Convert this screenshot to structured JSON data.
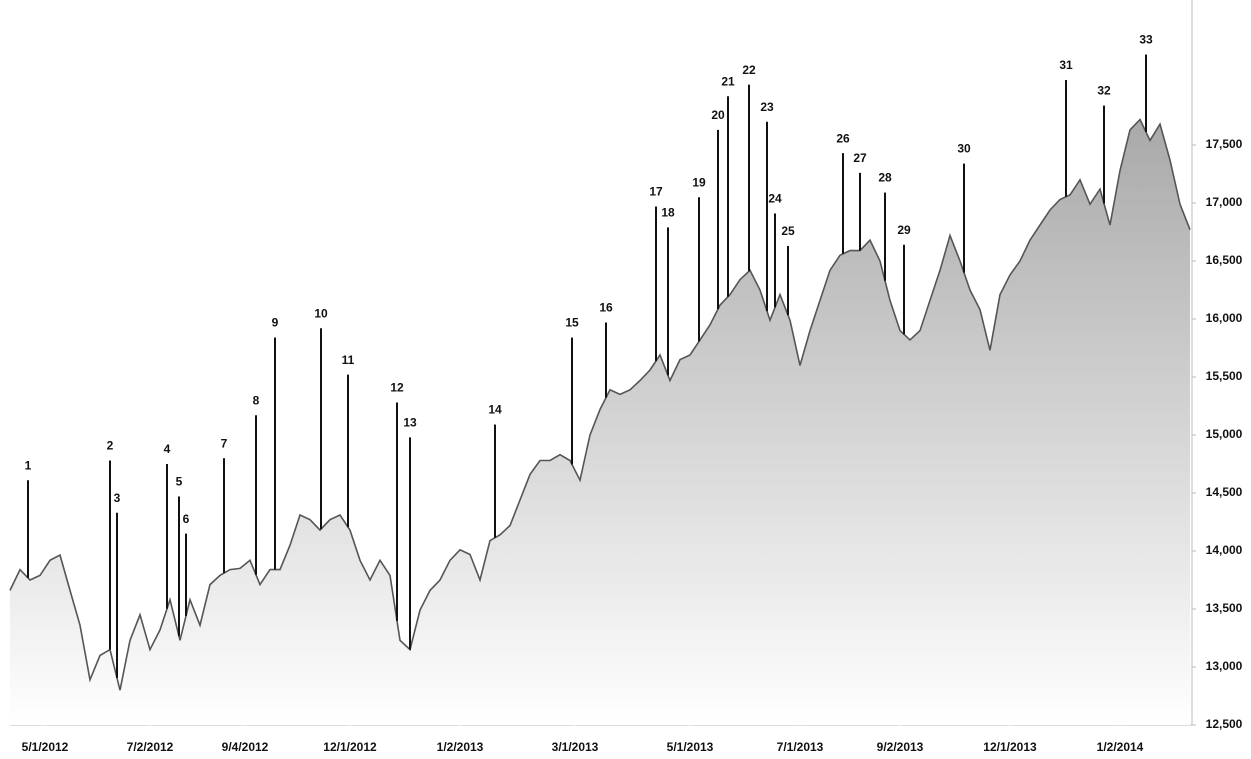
{
  "chart_data": {
    "type": "area",
    "values": [
      13660,
      13840,
      13750,
      13790,
      13920,
      13965,
      13660,
      13360,
      12890,
      13100,
      13150,
      12800,
      13230,
      13450,
      13150,
      13320,
      13580,
      13230,
      13580,
      13360,
      13710,
      13790,
      13840,
      13850,
      13920,
      13710,
      13840,
      13840,
      14050,
      14310,
      14270,
      14180,
      14270,
      14310,
      14180,
      13920,
      13750,
      13920,
      13790,
      13230,
      13150,
      13490,
      13660,
      13750,
      13920,
      14010,
      13970,
      13750,
      14090,
      14140,
      14220,
      14440,
      14660,
      14780,
      14780,
      14830,
      14780,
      14610,
      15000,
      15220,
      15390,
      15350,
      15390,
      15470,
      15560,
      15690,
      15470,
      15650,
      15690,
      15820,
      15950,
      16120,
      16210,
      16340,
      16420,
      16250,
      15990,
      16210,
      15990,
      15600,
      15900,
      16160,
      16420,
      16550,
      16590,
      16590,
      16680,
      16500,
      16160,
      15900,
      15820,
      15900,
      16160,
      16420,
      16720,
      16500,
      16250,
      16080,
      15730,
      16210,
      16380,
      16500,
      16680,
      16810,
      16940,
      17030,
      17070,
      17200,
      16990,
      17120,
      16810,
      17280,
      17630,
      17720,
      17540,
      17680,
      17370,
      16990,
      16770
    ],
    "color": "#555555",
    "xlim": [
      0,
      118
    ],
    "xticks": [
      {
        "value": 3.5,
        "label": "5/1/2012"
      },
      {
        "value": 14,
        "label": "7/2/2012"
      },
      {
        "value": 23.5,
        "label": "9/4/2012"
      },
      {
        "value": 34,
        "label": "12/1/2012"
      },
      {
        "value": 45,
        "label": "1/2/2013"
      },
      {
        "value": 56.5,
        "label": "3/1/2013"
      },
      {
        "value": 68,
        "label": "5/1/2013"
      },
      {
        "value": 79,
        "label": "7/1/2013"
      },
      {
        "value": 89,
        "label": "9/2/2013"
      },
      {
        "value": 100,
        "label": "12/1/2013"
      },
      {
        "value": 111,
        "label": "1/2/2014"
      }
    ],
    "ylim": [
      12500,
      18750
    ],
    "yticks": [
      {
        "value": 12500,
        "label": "12,500"
      },
      {
        "value": 13000,
        "label": "13,000"
      },
      {
        "value": 13500,
        "label": "13,500"
      },
      {
        "value": 14000,
        "label": "14,000"
      },
      {
        "value": 14500,
        "label": "14,500"
      },
      {
        "value": 15000,
        "label": "15,000"
      },
      {
        "value": 15500,
        "label": "15,500"
      },
      {
        "value": 16000,
        "label": "16,000"
      },
      {
        "value": 16500,
        "label": "16,500"
      },
      {
        "value": 17000,
        "label": "17,000"
      },
      {
        "value": 17500,
        "label": "17,500"
      }
    ],
    "annotations": [
      {
        "label": "1",
        "x": 1.8,
        "y": 14610
      },
      {
        "label": "2",
        "x": 10,
        "y": 14780
      },
      {
        "label": "3",
        "x": 10.7,
        "y": 14330
      },
      {
        "label": "4",
        "x": 15.7,
        "y": 14750
      },
      {
        "label": "5",
        "x": 16.9,
        "y": 14470
      },
      {
        "label": "6",
        "x": 17.6,
        "y": 14150
      },
      {
        "label": "7",
        "x": 21.4,
        "y": 14800
      },
      {
        "label": "8",
        "x": 24.6,
        "y": 15170
      },
      {
        "label": "9",
        "x": 26.5,
        "y": 15840
      },
      {
        "label": "10",
        "x": 31.1,
        "y": 15920
      },
      {
        "label": "11",
        "x": 33.8,
        "y": 15520
      },
      {
        "label": "12",
        "x": 38.7,
        "y": 15280
      },
      {
        "label": "13",
        "x": 40,
        "y": 14980
      },
      {
        "label": "14",
        "x": 48.5,
        "y": 15090
      },
      {
        "label": "15",
        "x": 56.2,
        "y": 15840
      },
      {
        "label": "16",
        "x": 59.6,
        "y": 15970
      },
      {
        "label": "17",
        "x": 64.6,
        "y": 16970
      },
      {
        "label": "18",
        "x": 65.8,
        "y": 16790
      },
      {
        "label": "19",
        "x": 68.9,
        "y": 17050
      },
      {
        "label": "20",
        "x": 70.8,
        "y": 17630
      },
      {
        "label": "21",
        "x": 71.8,
        "y": 17920
      },
      {
        "label": "22",
        "x": 73.9,
        "y": 18020
      },
      {
        "label": "23",
        "x": 75.7,
        "y": 17700
      },
      {
        "label": "24",
        "x": 76.5,
        "y": 16910
      },
      {
        "label": "25",
        "x": 77.8,
        "y": 16630
      },
      {
        "label": "26",
        "x": 83.3,
        "y": 17430
      },
      {
        "label": "27",
        "x": 85,
        "y": 17260
      },
      {
        "label": "28",
        "x": 87.5,
        "y": 17090
      },
      {
        "label": "29",
        "x": 89.4,
        "y": 16640
      },
      {
        "label": "30",
        "x": 95.4,
        "y": 17340
      },
      {
        "label": "31",
        "x": 105.6,
        "y": 18060
      },
      {
        "label": "32",
        "x": 109.4,
        "y": 17840
      },
      {
        "label": "33",
        "x": 113.6,
        "y": 18280
      }
    ]
  }
}
